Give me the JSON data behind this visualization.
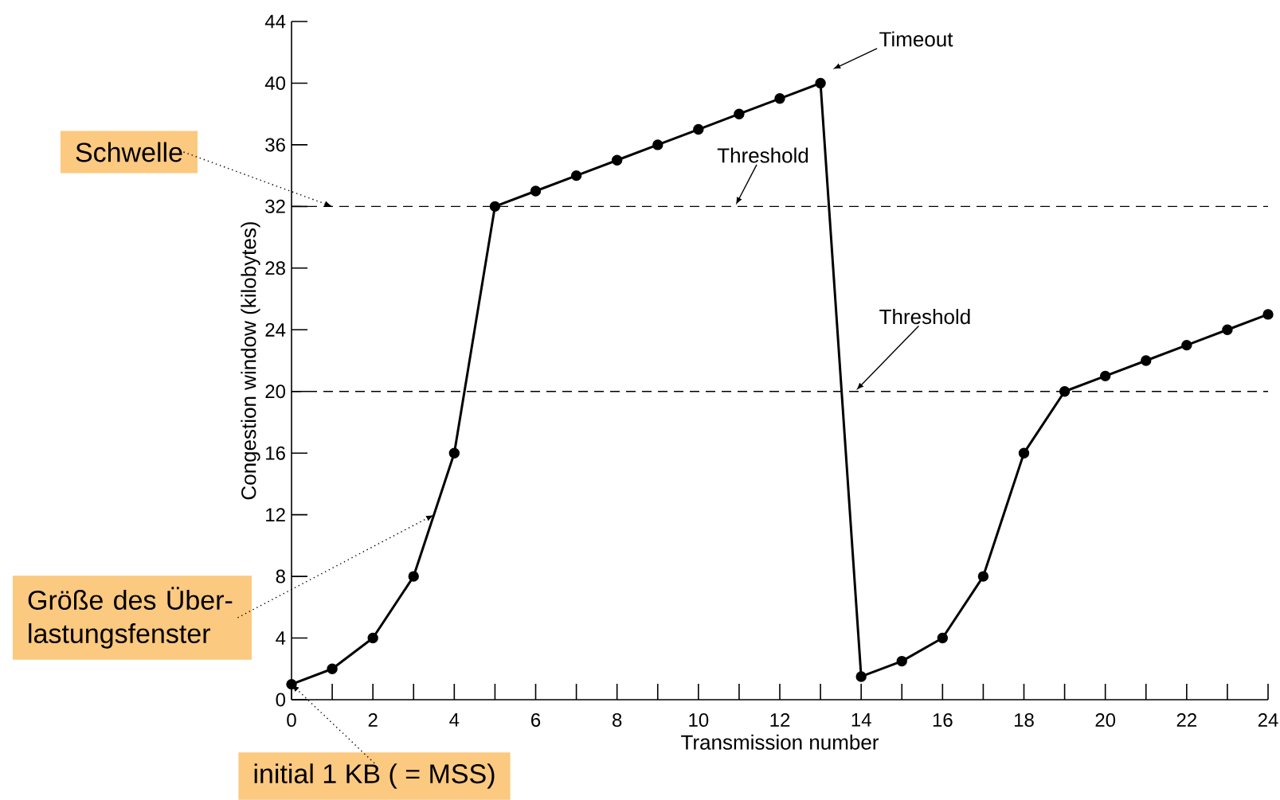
{
  "chart_data": {
    "type": "line",
    "xlabel": "Transmission number",
    "ylabel": "Congestion window (kilobytes)",
    "x": [
      0,
      1,
      2,
      3,
      4,
      5,
      6,
      7,
      8,
      9,
      10,
      11,
      12,
      13,
      14,
      15,
      16,
      17,
      18,
      19,
      20,
      21,
      22,
      23,
      24
    ],
    "values": [
      1,
      2,
      4,
      8,
      16,
      32,
      33,
      34,
      35,
      36,
      37,
      38,
      39,
      40,
      1.5,
      2.5,
      4,
      8,
      16,
      20,
      21,
      22,
      23,
      24,
      25
    ],
    "color": "#000000",
    "marker": "circle",
    "line_style": "solid",
    "xlim": [
      0,
      24
    ],
    "ylim": [
      0,
      44
    ],
    "xticks": [
      0,
      2,
      4,
      6,
      8,
      10,
      12,
      14,
      16,
      18,
      20,
      22,
      24
    ],
    "yticks": [
      0,
      4,
      8,
      12,
      16,
      20,
      24,
      28,
      32,
      36,
      40,
      44
    ],
    "ref_lines": [
      {
        "axis": "y",
        "value": 32,
        "label": "Threshold",
        "line_style": "dashed",
        "color": "#000000"
      },
      {
        "axis": "y",
        "value": 20,
        "label": "Threshold",
        "line_style": "dashed",
        "color": "#000000"
      }
    ],
    "annotations": [
      "Timeout",
      {
        "text": "Schwelle",
        "x": 1,
        "y": 32
      },
      {
        "text": "Größe des Über-lastungsfenster",
        "x": 3.5,
        "y": 12
      },
      {
        "text": "initial 1 KB ( = MSS)",
        "x": 0,
        "y": 1
      }
    ]
  }
}
